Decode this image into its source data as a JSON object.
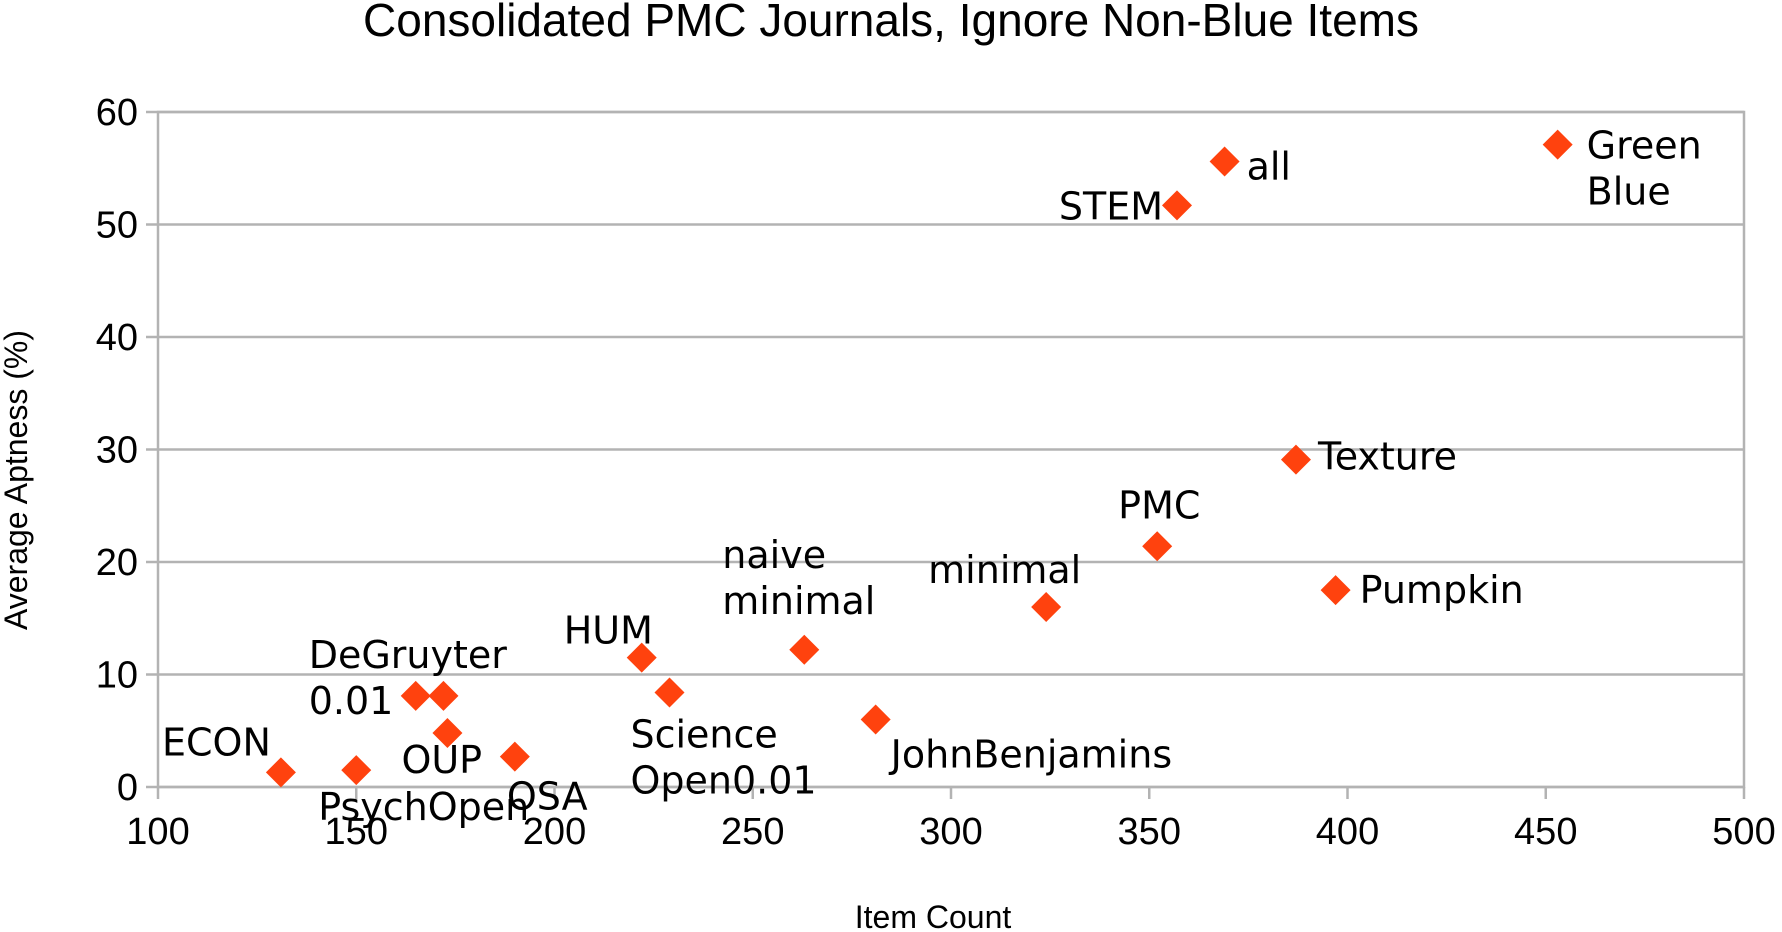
{
  "chart_data": {
    "type": "scatter",
    "title": "Consolidated PMC Journals, Ignore Non-Blue Items",
    "xlabel": "Item Count",
    "ylabel": "Average Aptness (%)",
    "xlim": [
      100,
      500
    ],
    "ylim": [
      0,
      60
    ],
    "xticks": [
      100,
      150,
      200,
      250,
      300,
      350,
      400,
      450,
      500
    ],
    "yticks": [
      0,
      10,
      20,
      30,
      40,
      50,
      60
    ],
    "grid": "horizontal",
    "marker": "diamond",
    "color": "#ff420e",
    "points": [
      {
        "x": 131,
        "y": 1.3,
        "label": [
          "ECON"
        ]
      },
      {
        "x": 150,
        "y": 1.5,
        "label": [
          "PsychOpen"
        ]
      },
      {
        "x": 165,
        "y": 8.1,
        "label": [
          "DeGruyter",
          "0.01"
        ]
      },
      {
        "x": 172,
        "y": 8.1,
        "label": []
      },
      {
        "x": 173,
        "y": 4.8,
        "label": [
          "OUP"
        ]
      },
      {
        "x": 190,
        "y": 2.7,
        "label": [
          "OSA"
        ]
      },
      {
        "x": 222,
        "y": 11.5,
        "label": [
          "HUM"
        ]
      },
      {
        "x": 229,
        "y": 8.4,
        "label": [
          "Science",
          "Open0.01"
        ]
      },
      {
        "x": 263,
        "y": 12.2,
        "label": [
          "naive",
          "minimal"
        ]
      },
      {
        "x": 281,
        "y": 6.0,
        "label": [
          "JohnBenjamins"
        ]
      },
      {
        "x": 324,
        "y": 16.0,
        "label": [
          "minimal"
        ]
      },
      {
        "x": 352,
        "y": 21.4,
        "label": [
          "PMC"
        ]
      },
      {
        "x": 357,
        "y": 51.7,
        "label": [
          "STEM"
        ]
      },
      {
        "x": 369,
        "y": 55.6,
        "label": [
          "all"
        ]
      },
      {
        "x": 387,
        "y": 29.1,
        "label": [
          "Texture"
        ]
      },
      {
        "x": 397,
        "y": 17.5,
        "label": [
          "Pumpkin"
        ]
      },
      {
        "x": 453,
        "y": 57.1,
        "label": [
          "Green",
          "Blue"
        ]
      }
    ]
  }
}
